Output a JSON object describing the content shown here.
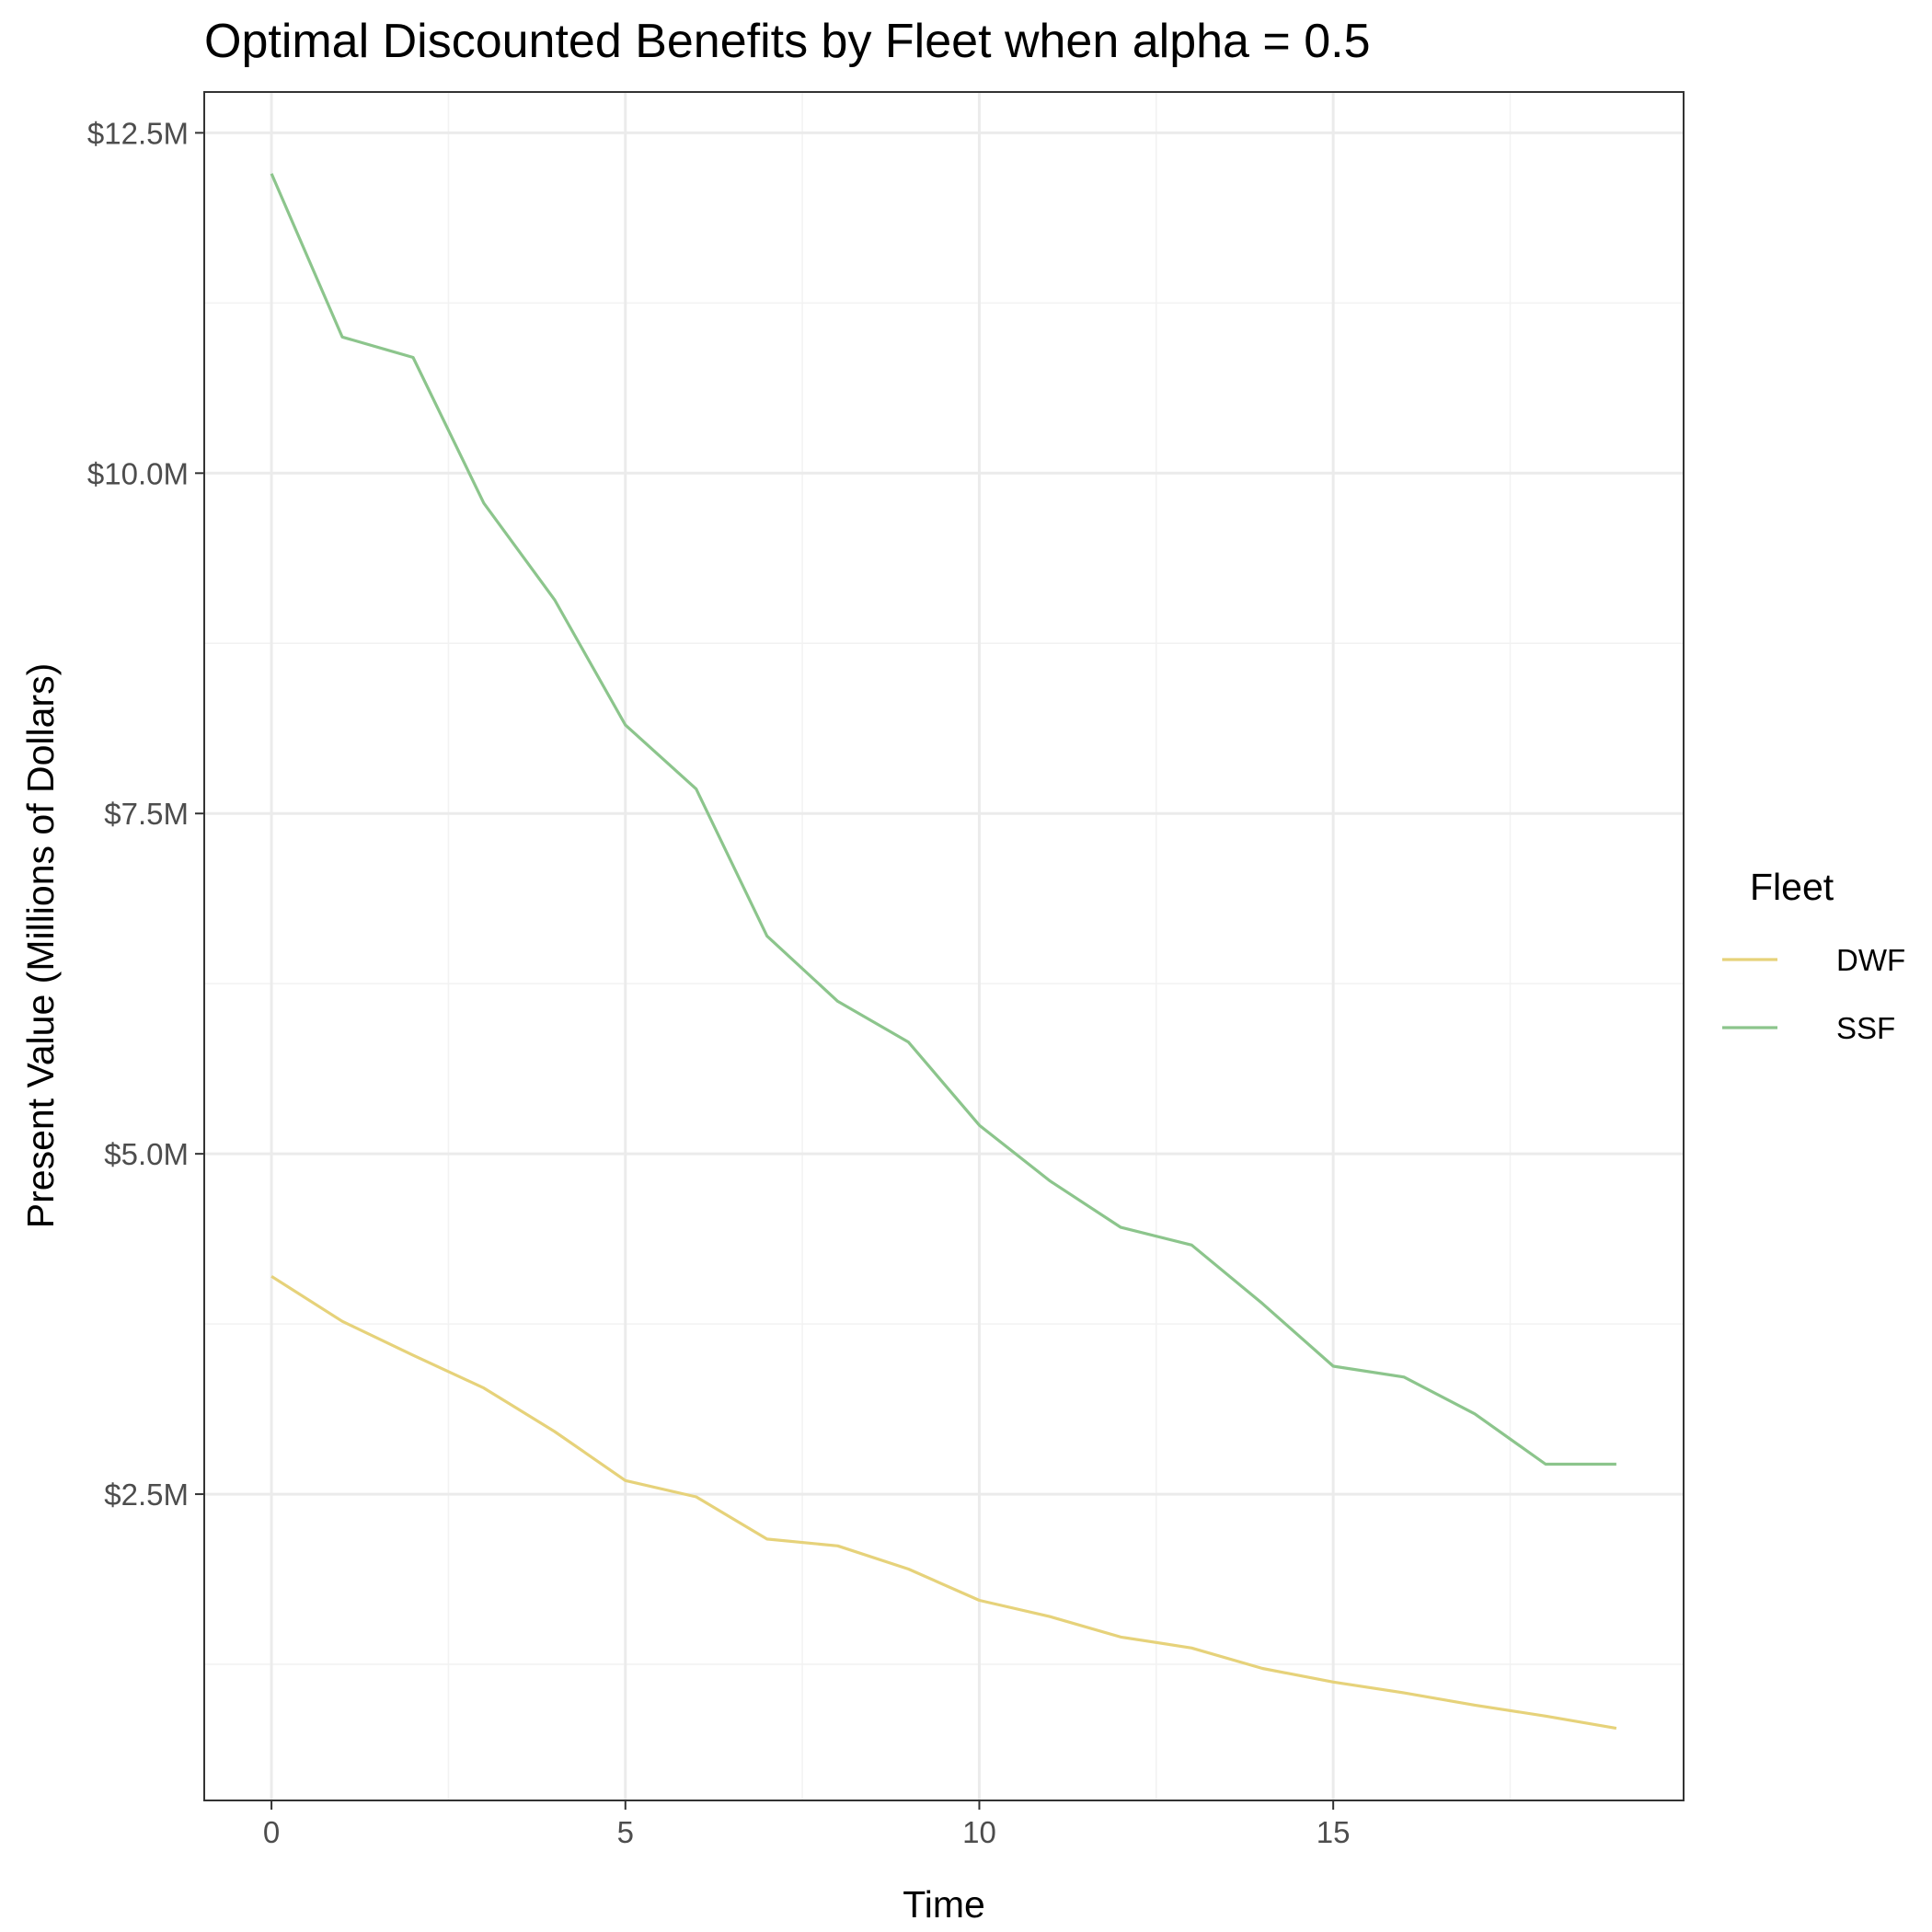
{
  "chart_data": {
    "type": "line",
    "title": "Optimal Discounted Benefits by Fleet when alpha = 0.5",
    "xlabel": "Time",
    "ylabel": "Present Value (Millions of Dollars)",
    "xlim": [
      -0.95,
      19.95
    ],
    "ylim": [
      0.25,
      12.8
    ],
    "x_ticks": [
      0,
      5,
      10,
      15
    ],
    "x_tick_labels": [
      "0",
      "5",
      "10",
      "15"
    ],
    "y_ticks": [
      2.5,
      5.0,
      7.5,
      10.0,
      12.5
    ],
    "y_tick_labels": [
      "$2.5M",
      "$5.0M",
      "$7.5M",
      "$10.0M",
      "$12.5M"
    ],
    "grid": true,
    "legend": {
      "title": "Fleet",
      "position": "right"
    },
    "x": [
      0,
      1,
      2,
      3,
      4,
      5,
      6,
      7,
      8,
      9,
      10,
      11,
      12,
      13,
      14,
      15,
      16,
      17,
      18,
      19
    ],
    "series": [
      {
        "name": "DWF",
        "color": "#e6d27a",
        "values": [
          4.1,
          3.77,
          3.52,
          3.28,
          2.96,
          2.6,
          2.48,
          2.17,
          2.12,
          1.95,
          1.72,
          1.6,
          1.45,
          1.37,
          1.22,
          1.12,
          1.04,
          0.95,
          0.87,
          0.78
        ]
      },
      {
        "name": "SSF",
        "color": "#8cc58c",
        "values": [
          12.2,
          11.0,
          10.85,
          9.78,
          9.07,
          8.15,
          7.68,
          6.6,
          6.12,
          5.82,
          5.21,
          4.8,
          4.46,
          4.33,
          3.9,
          3.44,
          3.36,
          3.09,
          2.72,
          2.72
        ]
      }
    ]
  }
}
